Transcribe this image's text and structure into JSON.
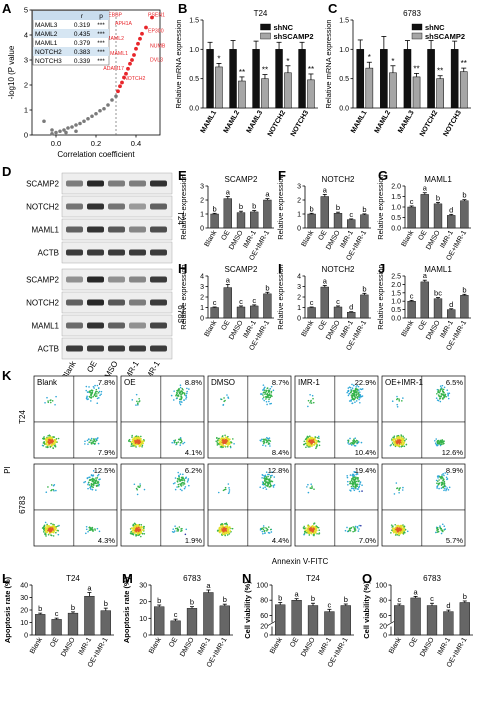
{
  "panels": {
    "A": "A",
    "B": "B",
    "C": "C",
    "D": "D",
    "E": "E",
    "F": "F",
    "G": "G",
    "H": "H",
    "I": "I",
    "J": "J",
    "K": "K",
    "L": "L",
    "M": "M",
    "N": "N",
    "O": "O"
  },
  "colors": {
    "shNC": "#111111",
    "shSCAMP2": "#a6a6a6",
    "bar": "#666666",
    "red": "#e8262b",
    "grey_pt": "#7a7a7a"
  },
  "western": {
    "cell_lines": [
      "T24",
      "6783"
    ],
    "proteins": [
      "SCAMP2",
      "NOTCH2",
      "MAML1",
      "ACTB"
    ],
    "lanes": [
      "Blank",
      "OE",
      "DMSO",
      "IMR-1",
      "OE+IMR-1"
    ]
  },
  "flow": {
    "row_labels": [
      "T24",
      "6783"
    ],
    "col_labels": [
      "Blank",
      "OE",
      "DMSO",
      "IMR-1",
      "OE+IMR-1"
    ],
    "ylabel": "PI",
    "xlabel": "Annexin V-FITC",
    "T24": {
      "ur": [
        "7.8%",
        "8.8%",
        "8.7%",
        "22.9%",
        "6.5%"
      ],
      "lr": [
        "7.9%",
        "4.1%",
        "8.4%",
        "10.4%",
        "12.6%"
      ]
    },
    "6783": {
      "ur": [
        "12.5%",
        "6.2%",
        "12.8%",
        "19.4%",
        "8.9%"
      ],
      "lr": [
        "4.3%",
        "1.9%",
        "4.4%",
        "7.0%",
        "5.7%"
      ]
    }
  },
  "chart_data": [
    {
      "id": "A",
      "type": "scatter",
      "xlabel": "Correlation coefficient",
      "ylabel": "-log10 (P value",
      "xlim": [
        -0.12,
        0.52
      ],
      "ylim": [
        0,
        5
      ],
      "xticks": [
        "0.0",
        "0.2",
        "0.4"
      ],
      "yticks": [
        "0",
        "1",
        "2",
        "3",
        "4",
        "5"
      ],
      "ref_x": 0.3,
      "table": {
        "header": [
          "",
          "r",
          "p"
        ],
        "rows": [
          [
            "MAML3",
            "0.319",
            "***"
          ],
          [
            "MAML2",
            "0.435",
            "***"
          ],
          [
            "MAML1",
            "0.379",
            "***"
          ],
          [
            "NOTCH2",
            "0.383",
            "***"
          ],
          [
            "NOTCH3",
            "0.339",
            "***"
          ]
        ]
      },
      "labels": [
        "CREBBP",
        "PSEN1",
        "APH1A",
        "EP300",
        "MAML2",
        "NUMB",
        "MAML1",
        "DVL3",
        "ADAM17",
        "NOTCH2"
      ],
      "grey_points": [
        [
          -0.06,
          0.55
        ],
        [
          -0.02,
          0.2
        ],
        [
          0.0,
          0.1
        ],
        [
          0.02,
          0.15
        ],
        [
          0.04,
          0.2
        ],
        [
          0.06,
          0.28
        ],
        [
          0.08,
          0.32
        ],
        [
          0.1,
          0.4
        ],
        [
          0.12,
          0.46
        ],
        [
          0.14,
          0.55
        ],
        [
          0.16,
          0.65
        ],
        [
          0.18,
          0.75
        ],
        [
          0.2,
          0.85
        ],
        [
          0.22,
          0.97
        ],
        [
          0.24,
          1.05
        ],
        [
          0.26,
          1.2
        ],
        [
          0.28,
          1.4
        ],
        [
          0.3,
          1.55
        ],
        [
          -0.02,
          0.05
        ],
        [
          0.05,
          0.1
        ],
        [
          0.1,
          0.15
        ]
      ],
      "red_points": [
        [
          0.31,
          1.75
        ],
        [
          0.32,
          1.95
        ],
        [
          0.33,
          2.1
        ],
        [
          0.34,
          2.3
        ],
        [
          0.35,
          2.45
        ],
        [
          0.36,
          2.65
        ],
        [
          0.37,
          2.85
        ],
        [
          0.38,
          3.0
        ],
        [
          0.39,
          3.2
        ],
        [
          0.4,
          3.45
        ],
        [
          0.41,
          3.65
        ],
        [
          0.42,
          3.85
        ],
        [
          0.43,
          4.05
        ],
        [
          0.45,
          4.3
        ],
        [
          0.48,
          4.7
        ]
      ]
    },
    {
      "id": "B",
      "type": "bar",
      "title": "T24",
      "ylabel": "Relative mRNA expression",
      "categories": [
        "MAML1",
        "MAML2",
        "MAML3",
        "NOTCH2",
        "NOTCH3"
      ],
      "ylim": [
        0,
        1.5
      ],
      "yticks": [
        "0.0",
        "0.5",
        "1.0",
        "1.5"
      ],
      "series": [
        {
          "name": "shNC",
          "values": [
            1.0,
            1.0,
            1.0,
            1.0,
            1.0
          ],
          "err": [
            0.12,
            0.15,
            0.14,
            0.12,
            0.12
          ]
        },
        {
          "name": "shSCAMP2",
          "values": [
            0.7,
            0.46,
            0.5,
            0.6,
            0.48
          ],
          "err": [
            0.06,
            0.07,
            0.07,
            0.12,
            0.1
          ]
        }
      ],
      "sig": [
        "*",
        "**",
        "**",
        "*",
        "**"
      ]
    },
    {
      "id": "C",
      "type": "bar",
      "title": "6783",
      "ylabel": "Relative mRNA expression",
      "categories": [
        "MAML1",
        "MAML2",
        "MAML3",
        "NOTCH2",
        "NOTCH3"
      ],
      "ylim": [
        0,
        1.5
      ],
      "yticks": [
        "0.0",
        "0.5",
        "1.0",
        "1.5"
      ],
      "series": [
        {
          "name": "shNC",
          "values": [
            1.0,
            1.0,
            1.0,
            1.0,
            1.0
          ],
          "err": [
            0.16,
            0.22,
            0.15,
            0.15,
            0.14
          ]
        },
        {
          "name": "shSCAMP2",
          "values": [
            0.68,
            0.6,
            0.53,
            0.5,
            0.62
          ],
          "err": [
            0.1,
            0.12,
            0.06,
            0.05,
            0.06
          ]
        }
      ],
      "sig": [
        "*",
        "*",
        "**",
        "**",
        "**"
      ]
    },
    {
      "id": "E",
      "type": "bar",
      "title": "SCAMP2",
      "ylabel": "Relative expression",
      "categories": [
        "Blank",
        "OE",
        "DMSO",
        "IMR-1",
        "OE+IMR-1"
      ],
      "ylim": [
        0,
        3
      ],
      "yticks": [
        "0",
        "1",
        "2",
        "3"
      ],
      "values": [
        1.0,
        2.1,
        1.1,
        1.15,
        2.0
      ],
      "err": [
        0.05,
        0.15,
        0.1,
        0.1,
        0.1
      ],
      "letters": [
        "b",
        "a",
        "b",
        "b",
        "a"
      ]
    },
    {
      "id": "F",
      "type": "bar",
      "title": "NOTCH2",
      "ylabel": "Relative expression",
      "categories": [
        "Blank",
        "OE",
        "DMSO",
        "IMR-1",
        "OE+IMR-1"
      ],
      "ylim": [
        0,
        3
      ],
      "yticks": [
        "0",
        "1",
        "2",
        "3"
      ],
      "values": [
        1.0,
        2.25,
        1.05,
        0.6,
        0.95
      ],
      "err": [
        0.05,
        0.15,
        0.08,
        0.05,
        0.06
      ],
      "letters": [
        "b",
        "a",
        "b",
        "c",
        "b"
      ]
    },
    {
      "id": "G",
      "type": "bar",
      "title": "MAML1",
      "ylabel": "Relative expression",
      "categories": [
        "Blank",
        "OE",
        "DMSO",
        "IMR-1",
        "OE+IMR-1"
      ],
      "ylim": [
        0,
        2.0
      ],
      "yticks": [
        "0.0",
        "0.5",
        "1.0",
        "1.5",
        "2.0"
      ],
      "values": [
        1.0,
        1.6,
        1.15,
        0.6,
        1.3
      ],
      "err": [
        0.05,
        0.08,
        0.07,
        0.05,
        0.05
      ],
      "letters": [
        "c",
        "a",
        "b",
        "d",
        "b"
      ]
    },
    {
      "id": "H",
      "type": "bar",
      "title": "SCAMP2",
      "ylabel": "Relative expression",
      "categories": [
        "Blank",
        "OE",
        "DMSO",
        "IMR-1",
        "OE+IMR-1"
      ],
      "ylim": [
        0,
        4
      ],
      "yticks": [
        "0",
        "1",
        "2",
        "3",
        "4"
      ],
      "values": [
        1.0,
        2.9,
        1.05,
        1.15,
        2.3
      ],
      "err": [
        0.05,
        0.3,
        0.1,
        0.1,
        0.15
      ],
      "letters": [
        "c",
        "a",
        "c",
        "c",
        "b"
      ]
    },
    {
      "id": "I",
      "type": "bar",
      "title": "NOTCH2",
      "ylabel": "Relative expression",
      "categories": [
        "Blank",
        "OE",
        "DMSO",
        "IMR-1",
        "OE+IMR-1"
      ],
      "ylim": [
        0,
        4
      ],
      "yticks": [
        "0",
        "1",
        "2",
        "3",
        "4"
      ],
      "values": [
        1.0,
        2.95,
        1.05,
        0.55,
        2.2
      ],
      "err": [
        0.05,
        0.15,
        0.1,
        0.05,
        0.15
      ],
      "letters": [
        "c",
        "a",
        "c",
        "d",
        "b"
      ]
    },
    {
      "id": "J",
      "type": "bar",
      "title": "MAML1",
      "ylabel": "Relative expression",
      "categories": [
        "Blank",
        "OE",
        "DMSO",
        "IMR-1",
        "OE+IMR-1"
      ],
      "ylim": [
        0,
        2.5
      ],
      "yticks": [
        "0.0",
        "0.5",
        "1.0",
        "1.5",
        "2.0",
        "2.5"
      ],
      "values": [
        1.0,
        2.15,
        1.15,
        0.5,
        1.35
      ],
      "err": [
        0.05,
        0.1,
        0.07,
        0.05,
        0.06
      ],
      "letters": [
        "c",
        "a",
        "bc",
        "d",
        "b"
      ]
    },
    {
      "id": "L",
      "type": "bar",
      "title": "T24",
      "ylabel": "Apoptosis rate (%)",
      "categories": [
        "Blank",
        "OE",
        "DMSO",
        "IMR-1",
        "OE+IMR-1"
      ],
      "ylim": [
        0,
        40
      ],
      "yticks": [
        "0",
        "10",
        "20",
        "30",
        "40"
      ],
      "values": [
        16.5,
        12.5,
        17.5,
        31,
        19.5
      ],
      "err": [
        1,
        1,
        1,
        3,
        2
      ],
      "letters": [
        "b",
        "c",
        "b",
        "a",
        "b"
      ]
    },
    {
      "id": "M",
      "type": "bar",
      "title": "6783",
      "ylabel": "Apoptosis rate (%)",
      "categories": [
        "Blank",
        "OE",
        "DMSO",
        "IMR-1",
        "OE+IMR-1"
      ],
      "ylim": [
        0,
        30
      ],
      "yticks": [
        "0",
        "10",
        "20",
        "30"
      ],
      "values": [
        17,
        8.5,
        16,
        25.5,
        17.5
      ],
      "err": [
        1,
        1,
        1,
        1.5,
        1
      ],
      "letters": [
        "b",
        "c",
        "b",
        "a",
        "b"
      ]
    },
    {
      "id": "N",
      "type": "bar",
      "title": "T24",
      "ylabel": "Cell viability (%)",
      "categories": [
        "Blank",
        "OE",
        "DMSO",
        "IMR-1",
        "OE+IMR-1"
      ],
      "ylim": [
        0,
        100
      ],
      "yticks": [
        "0",
        "20",
        "60",
        "80",
        "100"
      ],
      "break": [
        20,
        50
      ],
      "values": [
        74,
        80,
        73,
        65,
        73
      ],
      "err": [
        3,
        2,
        3,
        3,
        2
      ],
      "letters": [
        "b",
        "a",
        "b",
        "c",
        "b"
      ]
    },
    {
      "id": "O",
      "type": "bar",
      "title": "6783",
      "ylabel": "Cell viability (%)",
      "categories": [
        "Blank",
        "OE",
        "DMSO",
        "IMR-1",
        "OE+IMR-1"
      ],
      "ylim": [
        0,
        100
      ],
      "yticks": [
        "0",
        "20",
        "60",
        "80",
        "100"
      ],
      "break": [
        20,
        50
      ],
      "values": [
        73,
        83,
        73,
        65,
        77
      ],
      "err": [
        2,
        2,
        3,
        2,
        2
      ],
      "letters": [
        "c",
        "a",
        "c",
        "d",
        "b"
      ]
    }
  ]
}
